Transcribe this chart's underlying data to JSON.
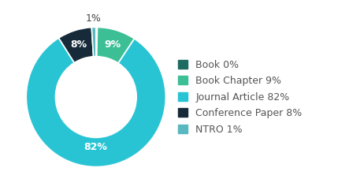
{
  "labels": [
    "Book",
    "Book Chapter",
    "Journal Article",
    "Conference Paper",
    "NTRO"
  ],
  "values": [
    0.3,
    9,
    82,
    8,
    1
  ],
  "colors": [
    "#1d6b61",
    "#3dbf96",
    "#29c4d4",
    "#172a3a",
    "#5ab8c0"
  ],
  "legend_labels": [
    "Book 0%",
    "Book Chapter 9%",
    "Journal Article 82%",
    "Conference Paper 8%",
    "NTRO 1%"
  ],
  "background_color": "#ffffff",
  "text_color": "#555555",
  "font_size": 9,
  "donut_width": 0.42,
  "start_angle": 90,
  "pct_labels": [
    "",
    "9%",
    "82%",
    "8%",
    "1%"
  ],
  "label_outside": [
    false,
    false,
    false,
    false,
    true
  ]
}
